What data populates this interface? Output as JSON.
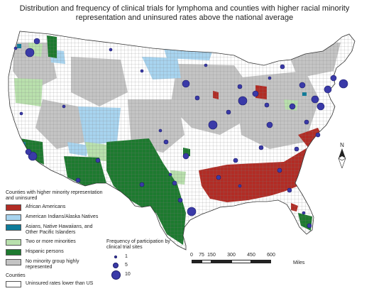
{
  "title_line1": "Distribution and frequency of clinical trials for lymphoma and counties with higher racial minority",
  "title_line2": "representation and uninsured rates above the national average",
  "legend": {
    "heading": "Counties with higher minority representation and uninsured",
    "items": [
      {
        "label": "African Americans",
        "color": "#b22c25"
      },
      {
        "label": "American Indians/Alaska Natives",
        "color": "#a8d4ef"
      },
      {
        "label": "Asians, Native Hawaiians, and Other Pacific Islanders",
        "color": "#0e7c9a"
      },
      {
        "label": "Two or more minorities",
        "color": "#b9e0ad"
      },
      {
        "label": "Hispanic persons",
        "color": "#1d7a2f"
      },
      {
        "label": "No minority group highly represented",
        "color": "#c4c4c4"
      }
    ],
    "counties_heading": "Counties",
    "counties_item": {
      "label": "Uninsured rates lower than US",
      "color": "#ffffff"
    }
  },
  "frequency_legend": {
    "heading": "Frequency of participation by clinical trial sites",
    "items": [
      {
        "label": "1",
        "value": 1
      },
      {
        "label": "5",
        "value": 5
      },
      {
        "label": "10",
        "value": 10
      }
    ]
  },
  "scale_bar": {
    "ticks": [
      "0",
      "75",
      "150",
      "300",
      "450",
      "600"
    ],
    "units": "Miles"
  },
  "north_arrow_label": "N",
  "colors": {
    "african_americans": "#b22c25",
    "american_indians": "#a8d4ef",
    "asians_pacific": "#0e7c9a",
    "two_or_more": "#b9e0ad",
    "hispanic": "#1d7a2f",
    "no_minority": "#c4c4c4",
    "lower_uninsured": "#ffffff",
    "trial_site": "#3a3aa8"
  }
}
